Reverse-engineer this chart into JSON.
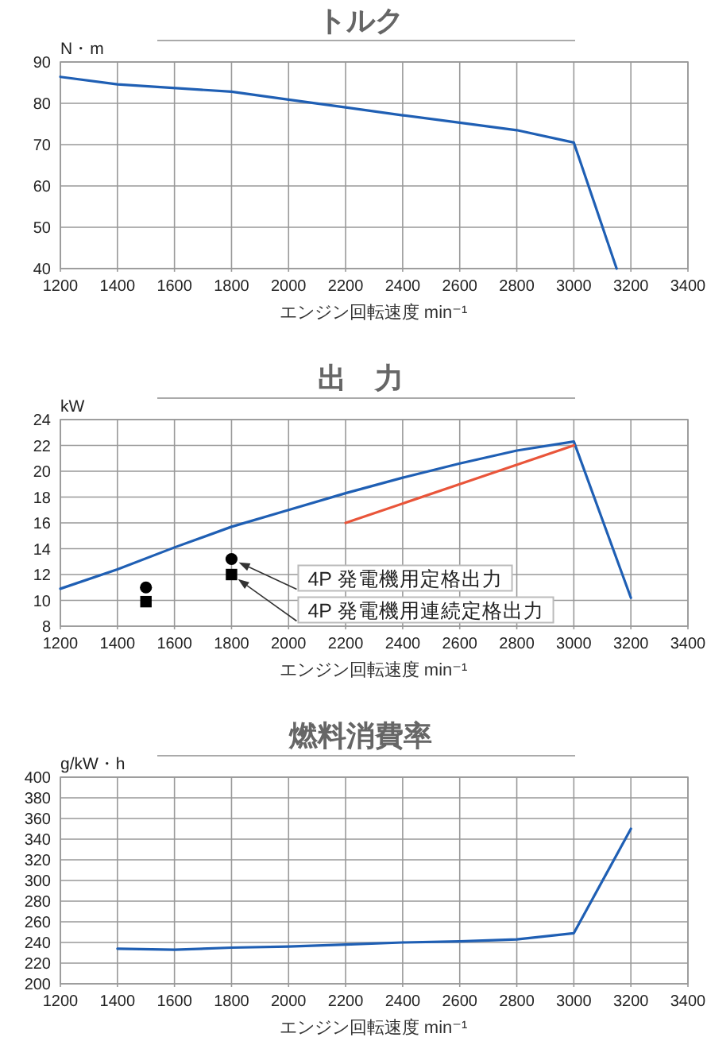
{
  "chart_data": [
    {
      "type": "line",
      "title": "トルク",
      "xlabel": "エンジン回転速度 min⁻¹",
      "ylabel": "N・m",
      "xlim": [
        1200,
        3400
      ],
      "ylim": [
        40,
        90
      ],
      "xticks": [
        1200,
        1400,
        1600,
        1800,
        2000,
        2200,
        2400,
        2600,
        2800,
        3000,
        3200,
        3400
      ],
      "yticks": [
        40,
        50,
        60,
        70,
        80,
        90
      ],
      "grid": true,
      "series": [
        {
          "color": "#1f5fb4",
          "x": [
            1200,
            1400,
            1800,
            2000,
            2200,
            2400,
            2600,
            2800,
            3000,
            3150
          ],
          "values": [
            86.4,
            84.6,
            82.8,
            80.9,
            79.0,
            77.1,
            75.3,
            73.5,
            70.5,
            40
          ]
        }
      ]
    },
    {
      "type": "line",
      "title": "出　力",
      "xlabel": "エンジン回転速度 min⁻¹",
      "ylabel": "kW",
      "xlim": [
        1200,
        3400
      ],
      "ylim": [
        8,
        24
      ],
      "xticks": [
        1200,
        1400,
        1600,
        1800,
        2000,
        2200,
        2400,
        2600,
        2800,
        3000,
        3200,
        3400
      ],
      "yticks": [
        8,
        10,
        12,
        14,
        16,
        18,
        20,
        22,
        24
      ],
      "grid": true,
      "series": [
        {
          "color": "#1f5fb4",
          "x": [
            1200,
            1400,
            1600,
            1800,
            2000,
            2200,
            2400,
            2600,
            2800,
            3000,
            3200
          ],
          "values": [
            10.9,
            12.4,
            14.1,
            15.7,
            17.0,
            18.3,
            19.5,
            20.6,
            21.6,
            22.3,
            10.2
          ]
        },
        {
          "color": "#e9553a",
          "x": [
            2200,
            2600,
            3000
          ],
          "values": [
            16.0,
            19.0,
            22.0
          ]
        },
        {
          "type": "scatter",
          "name": "4P 発電機用定格出力",
          "marker": "circle",
          "color": "#000000",
          "x": [
            1500,
            1800
          ],
          "values": [
            11.0,
            13.2
          ]
        },
        {
          "type": "scatter",
          "name": "4P 発電機用連続定格出力",
          "marker": "square",
          "color": "#000000",
          "x": [
            1500,
            1800
          ],
          "values": [
            9.9,
            12.0
          ]
        }
      ]
    },
    {
      "type": "line",
      "title": "燃料消費率",
      "xlabel": "エンジン回転速度 min⁻¹",
      "ylabel": "g/kW・h",
      "xlim": [
        1200,
        3400
      ],
      "ylim": [
        200,
        400
      ],
      "xticks": [
        1200,
        1400,
        1600,
        1800,
        2000,
        2200,
        2400,
        2600,
        2800,
        3000,
        3200,
        3400
      ],
      "yticks": [
        200,
        220,
        240,
        260,
        280,
        300,
        320,
        340,
        360,
        380,
        400
      ],
      "grid": true,
      "series": [
        {
          "color": "#1f5fb4",
          "x": [
            1400,
            1600,
            1800,
            2000,
            2200,
            2400,
            2600,
            2800,
            3000,
            3200
          ],
          "values": [
            234,
            233,
            235,
            236,
            238,
            240,
            241,
            243,
            249,
            350
          ]
        }
      ]
    }
  ]
}
